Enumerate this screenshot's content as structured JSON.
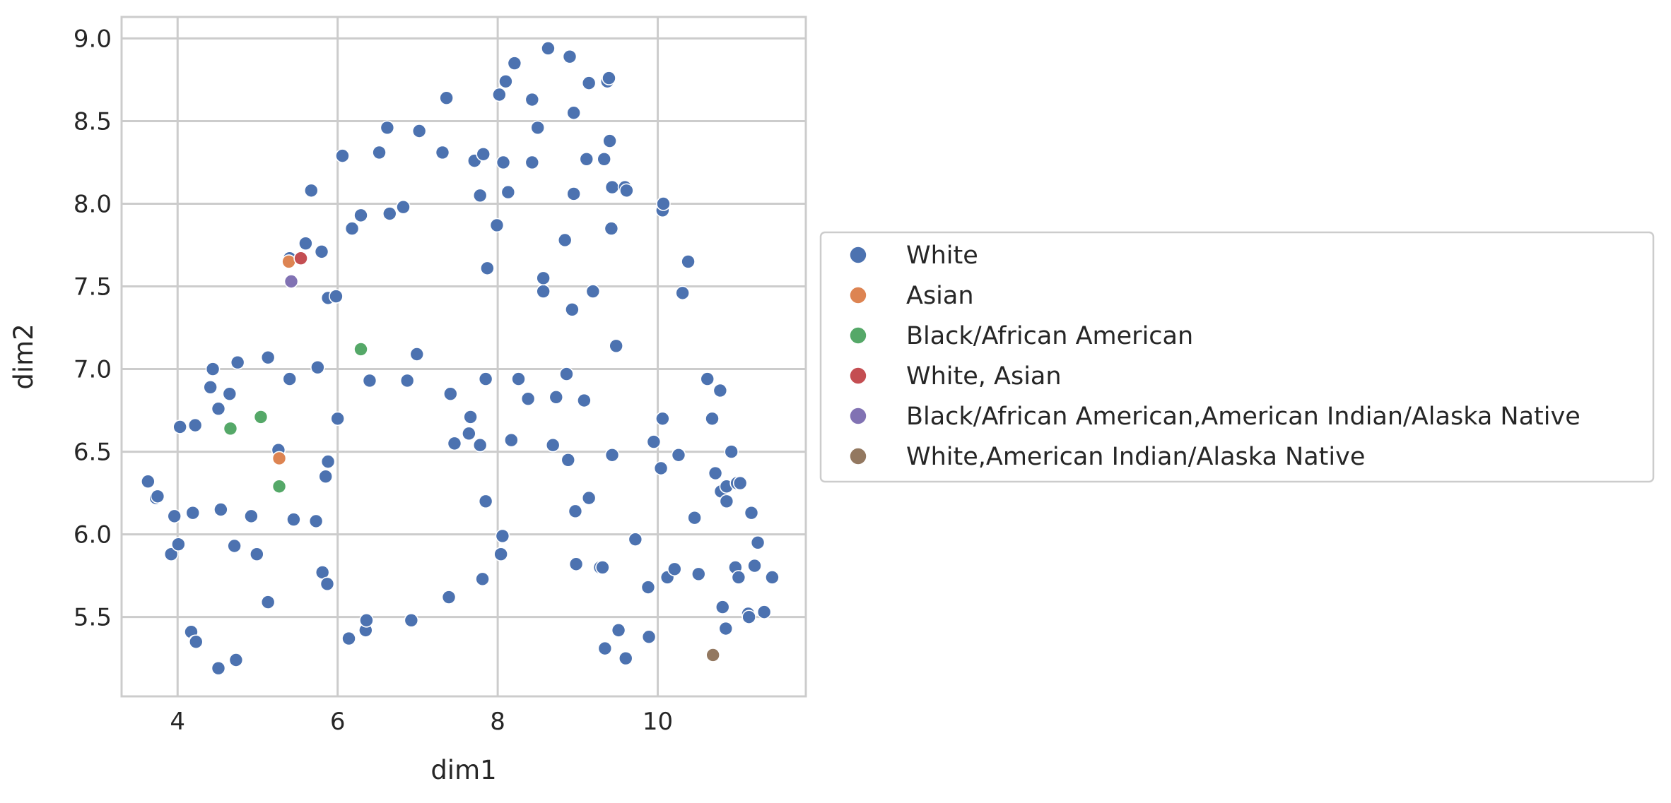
{
  "chart_data": {
    "type": "scatter",
    "title": "",
    "xlabel": "dim1",
    "ylabel": "dim2",
    "xlim": [
      3.3,
      11.85
    ],
    "ylim": [
      5.02,
      9.13
    ],
    "xticks": [
      4,
      6,
      8,
      10
    ],
    "yticks": [
      5.5,
      6.0,
      6.5,
      7.0,
      7.5,
      8.0,
      8.5,
      9.0
    ],
    "x_tick_labels": [
      "4",
      "6",
      "8",
      "10"
    ],
    "y_tick_labels": [
      "5.5",
      "6.0",
      "6.5",
      "7.0",
      "7.5",
      "8.0",
      "8.5",
      "9.0"
    ],
    "grid": true,
    "legend_position": "right",
    "series": [
      {
        "name": "White",
        "color": "#4c72b0",
        "points": [
          [
            3.63,
            6.32
          ],
          [
            3.73,
            6.22
          ],
          [
            3.75,
            6.23
          ],
          [
            3.92,
            5.88
          ],
          [
            3.96,
            6.11
          ],
          [
            4.01,
            5.94
          ],
          [
            4.03,
            6.65
          ],
          [
            4.19,
            6.13
          ],
          [
            4.22,
            6.66
          ],
          [
            4.17,
            5.41
          ],
          [
            4.22,
            5.35
          ],
          [
            4.23,
            5.35
          ],
          [
            4.41,
            6.89
          ],
          [
            4.44,
            7.0
          ],
          [
            4.51,
            6.76
          ],
          [
            4.54,
            6.15
          ],
          [
            4.65,
            6.85
          ],
          [
            4.71,
            5.93
          ],
          [
            4.75,
            7.04
          ],
          [
            4.51,
            5.19
          ],
          [
            4.73,
            5.24
          ],
          [
            4.92,
            6.11
          ],
          [
            4.99,
            5.88
          ],
          [
            5.13,
            7.07
          ],
          [
            5.13,
            5.59
          ],
          [
            5.26,
            6.51
          ],
          [
            5.4,
            7.67
          ],
          [
            5.4,
            6.94
          ],
          [
            5.45,
            6.09
          ],
          [
            5.6,
            7.76
          ],
          [
            5.67,
            8.08
          ],
          [
            5.73,
            6.08
          ],
          [
            5.75,
            7.01
          ],
          [
            5.8,
            7.71
          ],
          [
            5.81,
            5.77
          ],
          [
            5.85,
            6.35
          ],
          [
            5.87,
            5.7
          ],
          [
            5.88,
            6.44
          ],
          [
            5.88,
            7.43
          ],
          [
            5.98,
            7.44
          ],
          [
            6.0,
            6.7
          ],
          [
            6.06,
            8.29
          ],
          [
            6.14,
            5.37
          ],
          [
            6.18,
            7.85
          ],
          [
            6.29,
            7.93
          ],
          [
            6.35,
            5.42
          ],
          [
            6.36,
            5.48
          ],
          [
            6.4,
            6.93
          ],
          [
            6.52,
            8.31
          ],
          [
            6.62,
            8.46
          ],
          [
            6.65,
            7.94
          ],
          [
            6.82,
            7.98
          ],
          [
            6.87,
            6.93
          ],
          [
            6.92,
            5.48
          ],
          [
            6.99,
            7.09
          ],
          [
            7.02,
            8.44
          ],
          [
            7.31,
            8.31
          ],
          [
            7.36,
            8.64
          ],
          [
            7.39,
            5.62
          ],
          [
            7.41,
            6.85
          ],
          [
            7.46,
            6.55
          ],
          [
            7.64,
            6.61
          ],
          [
            7.66,
            6.71
          ],
          [
            7.71,
            8.26
          ],
          [
            7.78,
            6.54
          ],
          [
            7.78,
            8.05
          ],
          [
            7.81,
            5.73
          ],
          [
            7.82,
            8.3
          ],
          [
            7.85,
            6.94
          ],
          [
            7.85,
            6.2
          ],
          [
            7.87,
            7.61
          ],
          [
            7.99,
            7.87
          ],
          [
            8.02,
            8.66
          ],
          [
            8.04,
            5.88
          ],
          [
            8.06,
            5.99
          ],
          [
            8.07,
            8.25
          ],
          [
            8.1,
            8.74
          ],
          [
            8.13,
            8.07
          ],
          [
            8.17,
            6.57
          ],
          [
            8.21,
            8.85
          ],
          [
            8.26,
            6.94
          ],
          [
            8.38,
            6.82
          ],
          [
            8.43,
            8.25
          ],
          [
            8.43,
            8.63
          ],
          [
            8.5,
            8.46
          ],
          [
            8.57,
            7.47
          ],
          [
            8.57,
            7.55
          ],
          [
            8.63,
            8.94
          ],
          [
            8.69,
            6.54
          ],
          [
            8.73,
            6.83
          ],
          [
            8.84,
            7.78
          ],
          [
            8.86,
            6.97
          ],
          [
            8.88,
            6.45
          ],
          [
            8.9,
            8.89
          ],
          [
            8.93,
            7.36
          ],
          [
            8.95,
            8.06
          ],
          [
            8.95,
            8.55
          ],
          [
            8.97,
            6.14
          ],
          [
            8.98,
            5.82
          ],
          [
            9.08,
            6.81
          ],
          [
            9.11,
            8.27
          ],
          [
            9.14,
            8.73
          ],
          [
            9.14,
            6.22
          ],
          [
            9.19,
            7.47
          ],
          [
            9.28,
            5.8
          ],
          [
            9.31,
            5.8
          ],
          [
            9.33,
            8.27
          ],
          [
            9.34,
            5.31
          ],
          [
            9.37,
            8.74
          ],
          [
            9.39,
            8.76
          ],
          [
            9.4,
            8.38
          ],
          [
            9.42,
            7.85
          ],
          [
            9.43,
            8.1
          ],
          [
            9.43,
            6.48
          ],
          [
            9.48,
            7.14
          ],
          [
            9.51,
            5.42
          ],
          [
            9.59,
            8.1
          ],
          [
            9.61,
            8.08
          ],
          [
            9.6,
            5.25
          ],
          [
            9.72,
            5.97
          ],
          [
            9.88,
            5.68
          ],
          [
            9.89,
            5.38
          ],
          [
            9.95,
            6.56
          ],
          [
            10.04,
            6.4
          ],
          [
            10.06,
            6.7
          ],
          [
            10.06,
            7.96
          ],
          [
            10.07,
            8.0
          ],
          [
            10.12,
            5.74
          ],
          [
            10.21,
            5.79
          ],
          [
            10.26,
            6.48
          ],
          [
            10.31,
            7.46
          ],
          [
            10.38,
            7.65
          ],
          [
            10.46,
            6.1
          ],
          [
            10.51,
            5.76
          ],
          [
            10.62,
            6.94
          ],
          [
            10.68,
            6.7
          ],
          [
            10.72,
            6.37
          ],
          [
            10.78,
            6.87
          ],
          [
            10.79,
            6.26
          ],
          [
            10.81,
            5.56
          ],
          [
            10.85,
            5.43
          ],
          [
            10.86,
            6.2
          ],
          [
            10.86,
            6.29
          ],
          [
            10.92,
            6.5
          ],
          [
            10.97,
            5.8
          ],
          [
            10.99,
            6.31
          ],
          [
            11.03,
            6.31
          ],
          [
            11.01,
            5.74
          ],
          [
            11.13,
            5.52
          ],
          [
            11.14,
            5.5
          ],
          [
            11.17,
            6.13
          ],
          [
            11.21,
            5.81
          ],
          [
            11.25,
            5.95
          ],
          [
            11.33,
            5.53
          ],
          [
            11.43,
            5.74
          ]
        ]
      },
      {
        "name": "Asian",
        "color": "#dd8452",
        "points": [
          [
            5.39,
            7.65
          ],
          [
            5.27,
            6.46
          ]
        ]
      },
      {
        "name": "Black/African American",
        "color": "#55a868",
        "points": [
          [
            6.29,
            7.12
          ],
          [
            5.04,
            6.71
          ],
          [
            4.66,
            6.64
          ],
          [
            5.27,
            6.29
          ]
        ]
      },
      {
        "name": "White, Asian",
        "color": "#c44e52",
        "points": [
          [
            5.54,
            7.67
          ]
        ]
      },
      {
        "name": "Black/African American,American Indian/Alaska Native",
        "color": "#8172b3",
        "points": [
          [
            5.42,
            7.53
          ]
        ]
      },
      {
        "name": "White,American Indian/Alaska Native",
        "color": "#937860",
        "points": [
          [
            10.69,
            5.27
          ]
        ]
      }
    ]
  }
}
